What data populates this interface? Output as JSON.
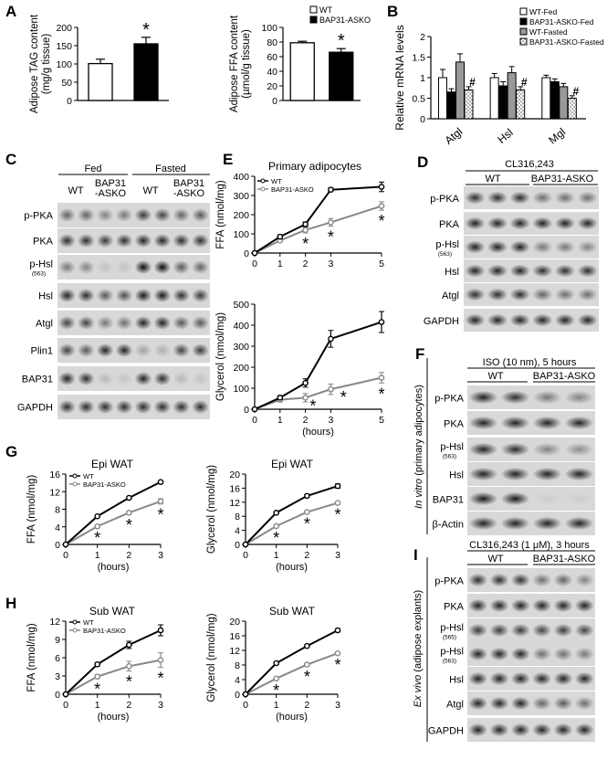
{
  "panel_letters": {
    "A": "A",
    "B": "B",
    "C": "C",
    "D": "D",
    "E": "E",
    "F": "F",
    "G": "G",
    "H": "H",
    "I": "I"
  },
  "star": "*",
  "hash": "#",
  "hours_label": "(hours)",
  "chart_data": [
    {
      "id": "A1",
      "type": "bar",
      "categories": [
        "WT",
        "BAP31-ASKO"
      ],
      "values": [
        101,
        155
      ],
      "errors": [
        12,
        18
      ],
      "ylabel": "Adipose TAG content (mg/g tissue)",
      "ylim": [
        0,
        200
      ],
      "yticks": [
        0,
        50,
        100,
        150,
        200
      ],
      "colors": [
        "#ffffff",
        "#000000"
      ],
      "marks": [
        "",
        "*"
      ]
    },
    {
      "id": "A2",
      "type": "bar",
      "categories": [
        "WT",
        "BAP31-ASKO"
      ],
      "values": [
        79,
        66
      ],
      "errors": [
        2,
        5
      ],
      "ylabel": "Adipose FFA content (µmol/g tissue)",
      "ylim": [
        0,
        100
      ],
      "yticks": [
        0,
        20,
        40,
        60,
        80,
        100
      ],
      "colors": [
        "#ffffff",
        "#000000"
      ],
      "marks": [
        "",
        "*"
      ],
      "legend": [
        "WT",
        "BAP31-ASKO"
      ]
    },
    {
      "id": "B",
      "type": "bar",
      "categories": [
        "Atgl",
        "Hsl",
        "Mgl"
      ],
      "series": [
        {
          "name": "WT-Fed",
          "values": [
            1.0,
            1.0,
            1.0
          ],
          "errors": [
            0.2,
            0.1,
            0.06
          ]
        },
        {
          "name": "BAP31-ASKO-Fed",
          "values": [
            0.65,
            0.8,
            0.9
          ],
          "errors": [
            0.08,
            0.1,
            0.07
          ]
        },
        {
          "name": "WT-Fasted",
          "values": [
            1.38,
            1.12,
            0.78
          ],
          "errors": [
            0.2,
            0.15,
            0.08
          ]
        },
        {
          "name": "BAP31-ASKO-Fasted",
          "values": [
            0.7,
            0.7,
            0.5
          ],
          "errors": [
            0.08,
            0.08,
            0.06
          ]
        }
      ],
      "series_colors": [
        "#ffffff",
        "#000000",
        "#999999",
        "hatch"
      ],
      "marks": [
        [
          "",
          "",
          "",
          "#"
        ],
        [
          "",
          "",
          "",
          "#"
        ],
        [
          "",
          "",
          "",
          "#"
        ]
      ],
      "ylabel": "Relative mRNA levels",
      "ylim": [
        0,
        2.0
      ],
      "yticks": [
        0,
        0.5,
        1.0,
        1.5,
        2.0
      ]
    },
    {
      "id": "E1",
      "type": "line",
      "title": "Primary adipocytes",
      "x": [
        0,
        1,
        2,
        3,
        5
      ],
      "xticks": [
        0,
        1,
        2,
        3,
        5
      ],
      "ylabel": "FFA (nmol/mg)",
      "ylim": [
        0,
        400
      ],
      "yticks": [
        0,
        100,
        200,
        300,
        400
      ],
      "legend": [
        "WT",
        "BAP31-ASKO"
      ],
      "series": [
        {
          "name": "WT",
          "values": [
            0,
            85,
            150,
            330,
            345
          ],
          "errors": [
            0,
            10,
            12,
            10,
            25
          ],
          "color": "#000000"
        },
        {
          "name": "BAP31-ASKO",
          "values": [
            0,
            65,
            120,
            160,
            245
          ],
          "errors": [
            0,
            8,
            15,
            20,
            22
          ],
          "color": "#888888"
        }
      ],
      "marks_x": [
        2,
        3,
        5
      ]
    },
    {
      "id": "E2",
      "type": "line",
      "x": [
        0,
        1,
        2,
        3,
        5
      ],
      "xticks": [
        0,
        1,
        2,
        3,
        5
      ],
      "ylabel": "Glycerol (nmol/mg)",
      "xlabel": "(hours)",
      "ylim": [
        0,
        500
      ],
      "yticks": [
        0,
        100,
        200,
        300,
        400,
        500
      ],
      "series": [
        {
          "name": "WT",
          "values": [
            0,
            55,
            125,
            335,
            415
          ],
          "errors": [
            0,
            10,
            20,
            40,
            50
          ],
          "color": "#000000"
        },
        {
          "name": "BAP31-ASKO",
          "values": [
            0,
            45,
            55,
            95,
            150
          ],
          "errors": [
            0,
            10,
            20,
            25,
            25
          ],
          "color": "#888888"
        }
      ],
      "marks_x": [
        2.3,
        3.5,
        5
      ]
    },
    {
      "id": "G1",
      "type": "line",
      "title": "Epi WAT",
      "x": [
        0,
        1,
        2,
        3
      ],
      "xticks": [
        0,
        1,
        2,
        3
      ],
      "ylabel": "FFA (nmol/mg)",
      "xlabel": "(hours)",
      "ylim": [
        0,
        16
      ],
      "yticks": [
        0,
        4,
        8,
        12,
        16
      ],
      "legend": [
        "WT",
        "BAP31-ASKO"
      ],
      "series": [
        {
          "name": "WT",
          "values": [
            0,
            6.4,
            10.6,
            14.2
          ],
          "errors": [
            0,
            0.2,
            0.3,
            0.3
          ],
          "color": "#000000"
        },
        {
          "name": "BAP31-ASKO",
          "values": [
            0,
            4.1,
            7.2,
            9.8
          ],
          "errors": [
            0,
            0.2,
            0.3,
            0.6
          ],
          "color": "#888888"
        }
      ],
      "marks_x": [
        1,
        2,
        3
      ]
    },
    {
      "id": "G2",
      "type": "line",
      "title": "Epi WAT",
      "x": [
        0,
        1,
        2,
        3
      ],
      "xticks": [
        0,
        1,
        2,
        3
      ],
      "ylabel": "Glycerol (nmol/mg)",
      "xlabel": "(hours)",
      "ylim": [
        0,
        20
      ],
      "yticks": [
        0,
        4,
        8,
        12,
        16,
        20
      ],
      "series": [
        {
          "name": "WT",
          "values": [
            0,
            9,
            13.8,
            16.6
          ],
          "errors": [
            0,
            0.3,
            0.4,
            0.6
          ],
          "color": "#000000"
        },
        {
          "name": "BAP31-ASKO",
          "values": [
            0,
            5.2,
            9.2,
            11.8
          ],
          "errors": [
            0,
            0.3,
            0.3,
            0.3
          ],
          "color": "#888888"
        }
      ],
      "marks_x": [
        1,
        2,
        3
      ]
    },
    {
      "id": "H1",
      "type": "line",
      "title": "Sub WAT",
      "x": [
        0,
        1,
        2,
        3
      ],
      "xticks": [
        0,
        1,
        2,
        3
      ],
      "ylabel": "FFA (nmol/mg)",
      "xlabel": "(hours)",
      "ylim": [
        0,
        12
      ],
      "yticks": [
        0,
        3,
        6,
        9,
        12
      ],
      "legend": [
        "WT",
        "BAP31-ASKO"
      ],
      "series": [
        {
          "name": "WT",
          "values": [
            0,
            4.9,
            8.1,
            10.5
          ],
          "errors": [
            0,
            0.3,
            0.6,
            0.9
          ],
          "color": "#000000"
        },
        {
          "name": "BAP31-ASKO",
          "values": [
            0,
            2.9,
            4.6,
            5.6
          ],
          "errors": [
            0,
            0.3,
            0.8,
            1.2
          ],
          "color": "#888888"
        }
      ],
      "marks_x": [
        1,
        2,
        3
      ]
    },
    {
      "id": "H2",
      "type": "line",
      "title": "Sub WAT",
      "x": [
        0,
        1,
        2,
        3
      ],
      "xticks": [
        0,
        1,
        2,
        3
      ],
      "ylabel": "Glycerol (nmol/mg)",
      "xlabel": "(hours)",
      "ylim": [
        0,
        20
      ],
      "yticks": [
        0,
        4,
        8,
        12,
        16,
        20
      ],
      "series": [
        {
          "name": "WT",
          "values": [
            0,
            8.5,
            13.2,
            17.5
          ],
          "errors": [
            0,
            0.3,
            0.3,
            0.4
          ],
          "color": "#000000"
        },
        {
          "name": "BAP31-ASKO",
          "values": [
            0,
            4.3,
            8.1,
            11.2
          ],
          "errors": [
            0,
            0.3,
            0.3,
            0.2
          ],
          "color": "#888888"
        }
      ],
      "marks_x": [
        1,
        2,
        3
      ]
    }
  ],
  "blots": {
    "C": {
      "fed": "Fed",
      "fasted": "Fasted",
      "wt1": "WT",
      "wt2": "WT",
      "ko1": "BAP31",
      "ko1b": "-ASKO",
      "ko2": "BAP31",
      "ko2b": "-ASKO",
      "rows": [
        {
          "label": "p-PKA",
          "sub": "",
          "pattern": [
            0.55,
            0.55,
            0.4,
            0.45,
            0.75,
            0.7,
            0.55,
            0.6
          ]
        },
        {
          "label": "PKA",
          "sub": "",
          "pattern": [
            0.8,
            0.8,
            0.75,
            0.8,
            0.85,
            0.85,
            0.8,
            0.8
          ]
        },
        {
          "label": "p-Hsl",
          "sub": "(563)",
          "pattern": [
            0.45,
            0.4,
            0.1,
            0.1,
            0.95,
            0.95,
            0.6,
            0.55
          ]
        },
        {
          "label": "Hsl",
          "sub": "",
          "pattern": [
            0.85,
            0.8,
            0.6,
            0.65,
            0.9,
            0.9,
            0.8,
            0.75
          ]
        },
        {
          "label": "Atgl",
          "sub": "",
          "pattern": [
            0.7,
            0.7,
            0.45,
            0.5,
            0.85,
            0.85,
            0.6,
            0.6
          ]
        },
        {
          "label": "Plin1",
          "sub": "",
          "pattern": [
            0.7,
            0.6,
            0.85,
            0.85,
            0.25,
            0.2,
            0.7,
            0.75
          ]
        },
        {
          "label": "BAP31",
          "sub": "",
          "pattern": [
            0.85,
            0.8,
            0.15,
            0.1,
            0.85,
            0.8,
            0.15,
            0.1
          ]
        },
        {
          "label": "GAPDH",
          "sub": "",
          "pattern": [
            0.8,
            0.8,
            0.8,
            0.8,
            0.8,
            0.8,
            0.8,
            0.8
          ]
        }
      ]
    },
    "D": {
      "title": "CL316,243",
      "wt": "WT",
      "ko": "BAP31-ASKO",
      "rows": [
        {
          "label": "p-PKA",
          "sub": "",
          "pattern": [
            0.8,
            0.8,
            0.8,
            0.5,
            0.5,
            0.5
          ]
        },
        {
          "label": "PKA",
          "sub": "",
          "pattern": [
            0.85,
            0.85,
            0.85,
            0.85,
            0.85,
            0.85
          ]
        },
        {
          "label": "p-Hsl",
          "sub": "(563)",
          "pattern": [
            0.85,
            0.85,
            0.85,
            0.45,
            0.45,
            0.4
          ]
        },
        {
          "label": "Hsl",
          "sub": "",
          "pattern": [
            0.85,
            0.85,
            0.85,
            0.8,
            0.8,
            0.8
          ]
        },
        {
          "label": "Atgl",
          "sub": "",
          "pattern": [
            0.8,
            0.8,
            0.8,
            0.55,
            0.5,
            0.5
          ]
        },
        {
          "label": "GAPDH",
          "sub": "",
          "pattern": [
            0.85,
            0.85,
            0.85,
            0.85,
            0.85,
            0.85
          ]
        }
      ]
    },
    "F": {
      "title": "ISO (10 nm), 5 hours",
      "wt": "WT",
      "ko": "BAP31-ASKO",
      "side_a": "In vitro",
      "side_b": " (primary adipocytes)",
      "rows": [
        {
          "label": "p-PKA",
          "sub": "",
          "pattern": [
            0.85,
            0.8,
            0.45,
            0.4
          ]
        },
        {
          "label": "PKA",
          "sub": "",
          "pattern": [
            0.85,
            0.85,
            0.85,
            0.85
          ]
        },
        {
          "label": "p-Hsl",
          "sub": "(563)",
          "pattern": [
            0.85,
            0.8,
            0.4,
            0.35
          ]
        },
        {
          "label": "Hsl",
          "sub": "",
          "pattern": [
            0.85,
            0.85,
            0.85,
            0.85
          ]
        },
        {
          "label": "BAP31",
          "sub": "",
          "pattern": [
            0.9,
            0.9,
            0.05,
            0.05
          ]
        },
        {
          "label": "β-Actin",
          "sub": "",
          "pattern": [
            0.85,
            0.85,
            0.85,
            0.85
          ]
        }
      ]
    },
    "I": {
      "title": "CL316,243 (1 μM), 3 hours",
      "wt": "WT",
      "ko": "BAP31-ASKO",
      "side_a": "Ex vivo",
      "side_b": " (adipose explants)",
      "rows": [
        {
          "label": "p-PKA",
          "sub": "",
          "pattern": [
            0.8,
            0.8,
            0.8,
            0.5,
            0.55,
            0.4
          ]
        },
        {
          "label": "PKA",
          "sub": "",
          "pattern": [
            0.85,
            0.85,
            0.85,
            0.85,
            0.85,
            0.85
          ]
        },
        {
          "label": "p-Hsl",
          "sub": "(565)",
          "pattern": [
            0.75,
            0.75,
            0.75,
            0.7,
            0.75,
            0.7
          ]
        },
        {
          "label": "p-Hsl",
          "sub": "(563)",
          "pattern": [
            0.85,
            0.85,
            0.85,
            0.5,
            0.5,
            0.45
          ]
        },
        {
          "label": "Hsl",
          "sub": "",
          "pattern": [
            0.85,
            0.85,
            0.85,
            0.85,
            0.85,
            0.85
          ]
        },
        {
          "label": "Atgl",
          "sub": "",
          "pattern": [
            0.85,
            0.85,
            0.85,
            0.55,
            0.6,
            0.5
          ]
        },
        {
          "label": "GAPDH",
          "sub": "",
          "pattern": [
            0.85,
            0.85,
            0.85,
            0.85,
            0.85,
            0.85
          ]
        }
      ]
    }
  }
}
